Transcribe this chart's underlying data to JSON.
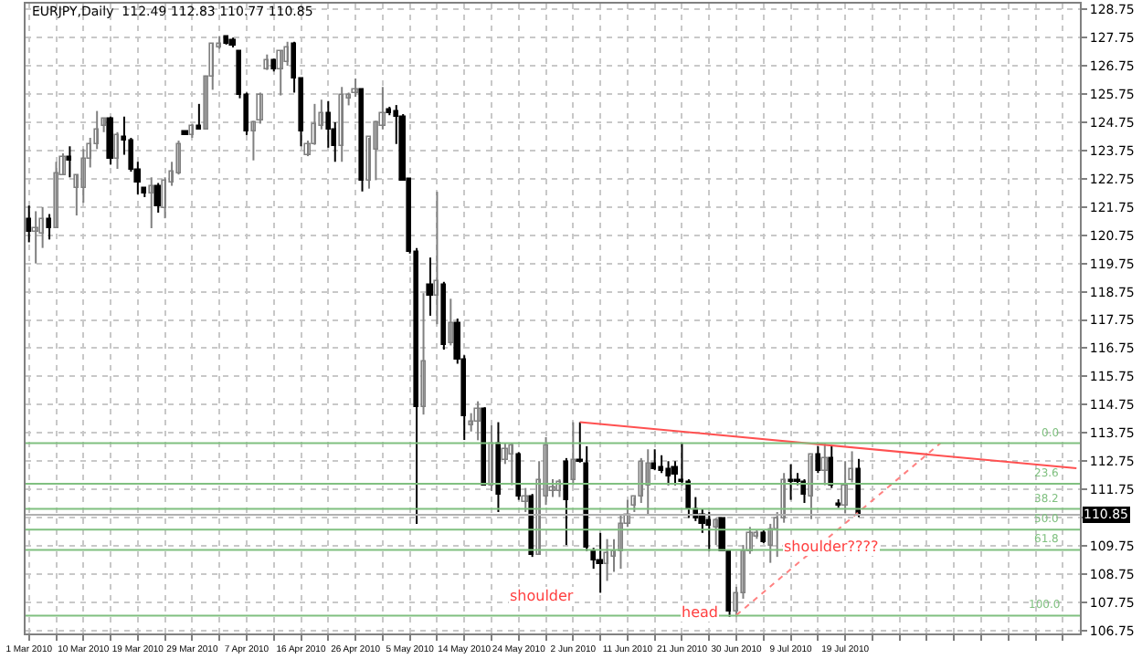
{
  "chart_data": {
    "type": "candlestick",
    "title": "EURJPY,Daily  112.49 112.83 110.77 110.85",
    "categories": [
      "1 Mar 2010",
      null,
      null,
      null,
      null,
      null,
      null,
      null,
      "10 Mar 2010",
      null,
      null,
      null,
      null,
      null,
      null,
      null,
      "19 Mar 2010",
      null,
      null,
      null,
      null,
      null,
      null,
      null,
      "29 Mar 2010",
      null,
      null,
      null,
      null,
      null,
      null,
      null,
      "7 Apr 2010",
      null,
      null,
      null,
      null,
      null,
      null,
      null,
      "16 Apr 2010",
      null,
      null,
      null,
      null,
      null,
      null,
      null,
      "26 Apr 2010",
      null,
      null,
      null,
      null,
      null,
      null,
      null,
      "5 May 2010",
      null,
      null,
      null,
      null,
      null,
      null,
      null,
      "14 May 2010",
      null,
      null,
      null,
      null,
      null,
      null,
      null,
      "24 May 2010",
      null,
      null,
      null,
      null,
      null,
      null,
      null,
      "2 Jun 2010",
      null,
      null,
      null,
      null,
      null,
      null,
      null,
      "11 Jun 2010",
      null,
      null,
      null,
      null,
      null,
      null,
      null,
      "21 Jun 2010",
      null,
      null,
      null,
      null,
      null,
      null,
      null,
      "30 Jun 2010",
      null,
      null,
      null,
      null,
      null,
      null,
      null,
      "9 Jul 2010",
      null,
      null,
      null,
      null,
      null,
      null,
      null,
      "19 Jul 2010",
      null,
      null,
      null,
      null,
      null,
      null,
      null,
      null,
      null,
      null,
      null,
      null,
      null,
      null,
      null,
      null,
      null,
      null,
      null,
      null,
      null,
      null,
      null,
      null,
      null,
      null,
      null,
      null,
      null,
      null,
      null,
      null,
      null,
      null
    ],
    "ohlc": [
      [
        121.3,
        121.8,
        120.5,
        120.9
      ],
      [
        120.9,
        121.6,
        119.75,
        121.0
      ],
      [
        120.8,
        121.75,
        120.3,
        121.3
      ],
      [
        121.3,
        121.5,
        120.6,
        121.0
      ],
      [
        121.0,
        123.35,
        121.0,
        122.95
      ],
      [
        122.9,
        123.65,
        122.9,
        123.5
      ],
      [
        123.5,
        123.9,
        122.8,
        123.4
      ],
      [
        122.4,
        122.9,
        121.45,
        122.9
      ],
      [
        122.4,
        123.8,
        121.9,
        123.45
      ],
      [
        123.45,
        124.2,
        123.15,
        124.0
      ],
      [
        124.0,
        125.15,
        123.8,
        124.5
      ],
      [
        124.6,
        124.9,
        124.4,
        124.9
      ],
      [
        124.9,
        124.95,
        123.25,
        123.45
      ],
      [
        123.45,
        124.4,
        123.1,
        124.3
      ],
      [
        124.2,
        124.95,
        123.6,
        124.1
      ],
      [
        124.1,
        124.2,
        123.0,
        123.1
      ],
      [
        123.1,
        123.35,
        122.2,
        122.6
      ],
      [
        122.4,
        122.4,
        122.1,
        122.2
      ],
      [
        122.2,
        122.8,
        121.0,
        122.5
      ],
      [
        122.5,
        122.6,
        121.55,
        121.75
      ],
      [
        121.7,
        122.8,
        121.35,
        122.7
      ],
      [
        122.6,
        123.35,
        122.5,
        123.0
      ],
      [
        122.95,
        124.1,
        122.9,
        124.0
      ],
      [
        124.4,
        124.4,
        124.3,
        124.3
      ],
      [
        124.3,
        124.7,
        124.2,
        124.6
      ],
      [
        124.6,
        125.4,
        124.5,
        124.5
      ],
      [
        124.5,
        126.4,
        124.5,
        126.35
      ],
      [
        126.35,
        127.55,
        125.9,
        127.5
      ],
      [
        127.4,
        127.8,
        127.35,
        127.5
      ],
      [
        127.8,
        127.8,
        127.5,
        127.55
      ],
      [
        127.65,
        127.75,
        127.4,
        127.45
      ],
      [
        127.25,
        127.3,
        125.6,
        125.7
      ],
      [
        125.7,
        125.8,
        124.3,
        124.4
      ],
      [
        124.45,
        124.8,
        123.4,
        124.75
      ],
      [
        124.8,
        125.8,
        124.7,
        125.7
      ],
      [
        126.6,
        127.15,
        126.6,
        126.95
      ],
      [
        126.95,
        127.0,
        126.55,
        126.6
      ],
      [
        126.65,
        127.3,
        125.7,
        127.25
      ],
      [
        126.85,
        127.6,
        126.75,
        127.4
      ],
      [
        127.5,
        127.6,
        125.8,
        126.3
      ],
      [
        126.3,
        126.3,
        123.9,
        124.4
      ],
      [
        123.6,
        124.1,
        123.55,
        123.95
      ],
      [
        123.95,
        125.4,
        123.95,
        124.7
      ],
      [
        124.6,
        125.55,
        124.5,
        125.1
      ],
      [
        125.1,
        125.5,
        123.85,
        124.5
      ],
      [
        124.5,
        124.75,
        123.35,
        123.9
      ],
      [
        123.9,
        126.0,
        123.35,
        125.7
      ],
      [
        125.6,
        125.8,
        125.35,
        125.7
      ],
      [
        125.8,
        126.3,
        125.65,
        125.9
      ],
      [
        125.9,
        125.9,
        122.3,
        122.7
      ],
      [
        122.7,
        124.2,
        122.4,
        124.2
      ],
      [
        123.77,
        124.8,
        122.7,
        124.72
      ],
      [
        124.62,
        126.0,
        124.5,
        125.04
      ],
      [
        125.2,
        125.3,
        125.0,
        125.05
      ],
      [
        125.15,
        125.36,
        123.98,
        124.94
      ],
      [
        124.94,
        125.04,
        122.71,
        122.71
      ],
      [
        122.75,
        122.75,
        120.1,
        120.17
      ],
      [
        120.17,
        120.3,
        110.53,
        114.66
      ],
      [
        114.66,
        118.7,
        114.4,
        116.31
      ],
      [
        119.0,
        119.96,
        117.9,
        118.58
      ],
      [
        118.58,
        122.29,
        117.6,
        119.11
      ],
      [
        119.0,
        119.1,
        116.7,
        116.88
      ],
      [
        116.9,
        118.5,
        116.85,
        117.62
      ],
      [
        117.62,
        117.8,
        116.2,
        116.35
      ],
      [
        116.35,
        116.5,
        113.5,
        114.34
      ],
      [
        114.02,
        114.45,
        113.8,
        114.13
      ],
      [
        114.13,
        114.87,
        113.49,
        114.6
      ],
      [
        114.6,
        114.66,
        111.9,
        111.9
      ],
      [
        111.9,
        114.02,
        111.69,
        113.39
      ],
      [
        113.39,
        114.13,
        110.95,
        111.59
      ],
      [
        112.8,
        113.39,
        112.65,
        113.17
      ],
      [
        112.96,
        113.39,
        111.9,
        113.28
      ],
      [
        112.96,
        113.07,
        111.38,
        111.48
      ],
      [
        111.31,
        111.8,
        110.95,
        111.48
      ],
      [
        111.48,
        111.59,
        109.36,
        109.46
      ],
      [
        109.46,
        112.75,
        109.46,
        112.11
      ],
      [
        111.48,
        113.6,
        111.2,
        113.3
      ],
      [
        111.69,
        112.11,
        111.48,
        111.8
      ],
      [
        111.69,
        112.11,
        111.48,
        112.0
      ],
      [
        112.75,
        112.86,
        109.78,
        111.38
      ],
      [
        112.11,
        114.13,
        111.9,
        112.8
      ],
      [
        112.8,
        114.13,
        112.7,
        112.7
      ],
      [
        112.64,
        113.28,
        109.57,
        109.68
      ],
      [
        109.57,
        109.68,
        108.94,
        109.26
      ],
      [
        109.26,
        110.21,
        108.09,
        109.1
      ],
      [
        109.1,
        109.99,
        108.51,
        109.5
      ],
      [
        109.36,
        109.99,
        108.83,
        109.57
      ],
      [
        109.57,
        110.85,
        108.94,
        110.53
      ],
      [
        110.53,
        111.38,
        110.42,
        110.85
      ],
      [
        111.2,
        111.48,
        110.95,
        111.48
      ],
      [
        111.48,
        112.86,
        111.27,
        112.75
      ],
      [
        111.9,
        113.17,
        110.85,
        112.64
      ],
      [
        112.64,
        113.17,
        112.43,
        112.5
      ],
      [
        112.54,
        112.96,
        112.33,
        112.43
      ],
      [
        112.5,
        112.75,
        111.9,
        112.22
      ],
      [
        112.54,
        112.75,
        111.9,
        112.28
      ],
      [
        112.11,
        113.39,
        111.9,
        112.0
      ],
      [
        112.0,
        112.11,
        110.74,
        111.06
      ],
      [
        111.06,
        111.48,
        110.63,
        110.74
      ],
      [
        110.85,
        111.06,
        110.21,
        110.53
      ],
      [
        110.63,
        110.95,
        109.57,
        110.47
      ],
      [
        110.42,
        110.74,
        109.78,
        110.63
      ],
      [
        110.74,
        110.74,
        109.57,
        109.57
      ],
      [
        109.57,
        109.57,
        107.24,
        107.45
      ],
      [
        107.45,
        108.3,
        107.24,
        108.09
      ],
      [
        108.09,
        109.78,
        107.88,
        109.57
      ],
      [
        109.57,
        110.42,
        109.47,
        110.21
      ],
      [
        110.1,
        110.3,
        110.0,
        110.21
      ],
      [
        110.21,
        110.3,
        109.85,
        109.9
      ],
      [
        109.78,
        110.53,
        109.15,
        110.32
      ],
      [
        110.32,
        110.95,
        109.36,
        110.74
      ],
      [
        110.74,
        112.33,
        110.57,
        112.11
      ],
      [
        112.11,
        112.64,
        111.38,
        112.0
      ],
      [
        112.11,
        112.33,
        111.9,
        112.0
      ],
      [
        112.0,
        112.11,
        111.27,
        111.54
      ],
      [
        111.48,
        112.96,
        110.7,
        112.96
      ],
      [
        112.96,
        113.28,
        112.33,
        112.43
      ],
      [
        112.43,
        113.39,
        111.9,
        112.85
      ],
      [
        112.85,
        113.28,
        111.8,
        111.9
      ],
      [
        111.27,
        111.4,
        111.1,
        111.18
      ],
      [
        111.2,
        112.75,
        110.9,
        111.9
      ],
      [
        112.1,
        113.1,
        112.0,
        112.49
      ],
      [
        112.49,
        112.83,
        110.77,
        110.85
      ],
      null,
      null,
      null,
      null,
      null,
      null,
      null,
      null,
      null,
      null,
      null,
      null,
      null,
      null,
      null,
      null,
      null,
      null,
      null,
      null,
      null,
      null,
      null,
      null,
      null,
      null,
      null,
      null,
      null,
      null,
      null,
      null
    ],
    "series": [
      {
        "type": "line",
        "color": "#ff5050",
        "line_style": "solid",
        "values": [
          null,
          null,
          null,
          null,
          null,
          null,
          null,
          null,
          null,
          null,
          null,
          null,
          null,
          null,
          null,
          null,
          null,
          null,
          null,
          null,
          null,
          null,
          null,
          null,
          null,
          null,
          null,
          null,
          null,
          null,
          null,
          null,
          null,
          null,
          null,
          null,
          null,
          null,
          null,
          null,
          null,
          null,
          null,
          null,
          null,
          null,
          null,
          null,
          null,
          null,
          null,
          null,
          null,
          null,
          null,
          null,
          null,
          null,
          null,
          null,
          null,
          null,
          null,
          null,
          null,
          null,
          null,
          null,
          null,
          null,
          null,
          null,
          null,
          null,
          null,
          null,
          null,
          null,
          null,
          null,
          null,
          114.13,
          null,
          null,
          null,
          null,
          null,
          null,
          null,
          null,
          null,
          null,
          null,
          null,
          null,
          null,
          null,
          null,
          null,
          null,
          null,
          null,
          null,
          null,
          null,
          null,
          null,
          null,
          null,
          null,
          null,
          null,
          null,
          null,
          null,
          null,
          null,
          null,
          null,
          null,
          null,
          null,
          null,
          null,
          null,
          null,
          null,
          null,
          null,
          null,
          null,
          null,
          null,
          null,
          null,
          null,
          null,
          null,
          null,
          null,
          null,
          null,
          null,
          null,
          null,
          null,
          null,
          null,
          null,
          null,
          null,
          null,
          null,
          null,
          112.5
        ]
      },
      {
        "type": "line",
        "color": "#ff8080",
        "line_style": "dotted",
        "values": [
          null,
          null,
          null,
          null,
          null,
          null,
          null,
          null,
          null,
          null,
          null,
          null,
          null,
          null,
          null,
          null,
          null,
          null,
          null,
          null,
          null,
          null,
          null,
          null,
          null,
          null,
          null,
          null,
          null,
          null,
          null,
          null,
          null,
          null,
          null,
          null,
          null,
          null,
          null,
          null,
          null,
          null,
          null,
          null,
          null,
          null,
          null,
          null,
          null,
          null,
          null,
          null,
          null,
          null,
          null,
          null,
          null,
          null,
          null,
          null,
          null,
          null,
          null,
          null,
          null,
          null,
          null,
          null,
          null,
          null,
          null,
          null,
          null,
          null,
          null,
          null,
          null,
          null,
          null,
          null,
          null,
          null,
          null,
          null,
          null,
          null,
          null,
          null,
          null,
          null,
          null,
          null,
          null,
          null,
          null,
          null,
          null,
          null,
          null,
          null,
          null,
          null,
          null,
          null,
          107.3,
          null,
          null,
          null,
          null,
          null,
          null,
          null,
          null,
          null,
          null,
          null,
          null,
          null,
          null,
          null,
          null,
          null,
          null,
          null,
          null,
          null,
          null,
          null,
          null,
          null,
          null,
          null,
          null,
          null,
          113.39,
          null,
          null,
          null,
          null,
          null,
          null,
          null,
          null,
          null,
          null,
          null,
          null,
          null,
          null,
          null,
          null,
          null,
          null,
          null,
          null
        ]
      }
    ],
    "ylim": [
      106.65,
      128.95
    ],
    "yticks": [
      106.75,
      107.75,
      108.75,
      109.75,
      {
        "value": 110.75,
        "label": null
      },
      111.75,
      112.75,
      113.75,
      114.75,
      115.75,
      116.75,
      117.75,
      118.75,
      119.75,
      120.75,
      121.75,
      122.75,
      123.75,
      124.75,
      125.75,
      126.75,
      127.75,
      128.75
    ],
    "grid": true,
    "ref_lines": [
      {
        "axis": "y",
        "value": 113.39,
        "color": "#80c080"
      },
      {
        "axis": "y",
        "value": 111.95,
        "color": "#80c080"
      },
      {
        "axis": "y",
        "value": 111.06,
        "color": "#80c080"
      },
      {
        "axis": "y",
        "value": 110.33,
        "color": "#80c080"
      },
      {
        "axis": "y",
        "value": 109.61,
        "color": "#80c080"
      },
      {
        "axis": "y",
        "value": 107.28,
        "color": "#80c080"
      },
      {
        "axis": "y",
        "value": 110.85,
        "label": "110.85"
      }
    ],
    "annotations": [
      "shoulder",
      {
        "text": "head",
        "y": 107.39
      },
      {
        "text": "shoulder????",
        "y": 109.74
      },
      {
        "text": "0.0",
        "y": 113.39
      },
      {
        "text": "23.6",
        "y": 111.95
      },
      {
        "text": "38.2",
        "y": 111.06
      },
      {
        "text": "50.0",
        "y": 110.33
      },
      {
        "text": "61.8",
        "y": 109.61
      },
      {
        "text": "100.0",
        "y": 107.28
      }
    ]
  }
}
